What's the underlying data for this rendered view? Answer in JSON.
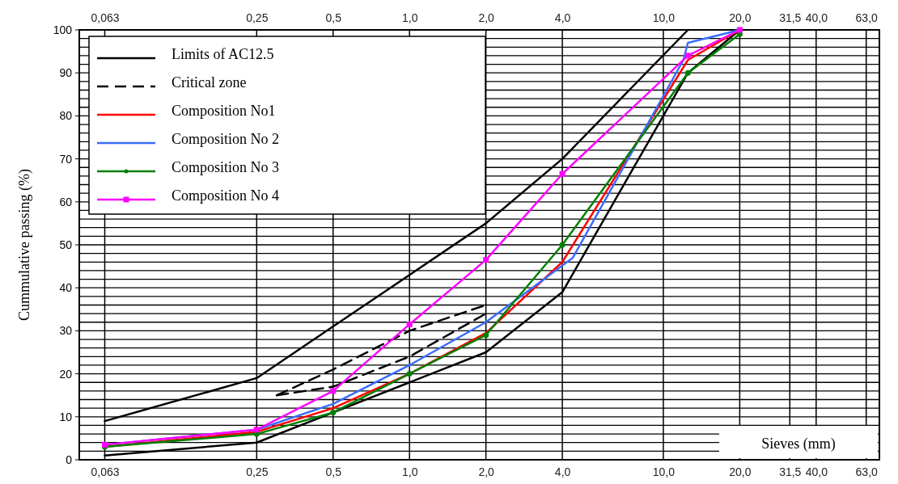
{
  "chart_data": {
    "type": "line",
    "xlabel": "Sieves (mm)",
    "ylabel": "Cummulative passing (%)",
    "log": "x",
    "xlim": [
      0.05,
      71
    ],
    "ylim": [
      0,
      100
    ],
    "xticks": [
      {
        "value": 0.063,
        "label": "0,063"
      },
      {
        "value": 0.25,
        "label": "0,25"
      },
      {
        "value": 0.5,
        "label": "0,5"
      },
      {
        "value": 1,
        "label": "1,0"
      },
      {
        "value": 2,
        "label": "2,0"
      },
      {
        "value": 4,
        "label": "4,0"
      },
      {
        "value": 10,
        "label": "10,0"
      },
      {
        "value": 20,
        "label": "20,0"
      },
      {
        "value": 31.5,
        "label": "31,5"
      },
      {
        "value": 40,
        "label": "40,0"
      },
      {
        "value": 63,
        "label": "63,0"
      }
    ],
    "yticks": [
      0,
      {
        "value": 2,
        "label": null
      },
      {
        "value": 4,
        "label": null
      },
      {
        "value": 6,
        "label": null
      },
      {
        "value": 8,
        "label": null
      },
      10,
      {
        "value": 12,
        "label": null
      },
      {
        "value": 14,
        "label": null
      },
      {
        "value": 16,
        "label": null
      },
      {
        "value": 18,
        "label": null
      },
      20,
      {
        "value": 22,
        "label": null
      },
      {
        "value": 24,
        "label": null
      },
      {
        "value": 26,
        "label": null
      },
      {
        "value": 28,
        "label": null
      },
      30,
      {
        "value": 32,
        "label": null
      },
      {
        "value": 34,
        "label": null
      },
      {
        "value": 36,
        "label": null
      },
      {
        "value": 38,
        "label": null
      },
      40,
      {
        "value": 42,
        "label": null
      },
      {
        "value": 44,
        "label": null
      },
      {
        "value": 46,
        "label": null
      },
      {
        "value": 48,
        "label": null
      },
      50,
      {
        "value": 52,
        "label": null
      },
      {
        "value": 54,
        "label": null
      },
      {
        "value": 56,
        "label": null
      },
      {
        "value": 58,
        "label": null
      },
      60,
      {
        "value": 62,
        "label": null
      },
      {
        "value": 64,
        "label": null
      },
      {
        "value": 66,
        "label": null
      },
      {
        "value": 68,
        "label": null
      },
      70,
      {
        "value": 72,
        "label": null
      },
      {
        "value": 74,
        "label": null
      },
      {
        "value": 76,
        "label": null
      },
      {
        "value": 78,
        "label": null
      },
      80,
      {
        "value": 82,
        "label": null
      },
      {
        "value": 84,
        "label": null
      },
      {
        "value": 86,
        "label": null
      },
      {
        "value": 88,
        "label": null
      },
      90,
      {
        "value": 92,
        "label": null
      },
      {
        "value": 94,
        "label": null
      },
      {
        "value": 96,
        "label": null
      },
      {
        "value": 98,
        "label": null
      },
      100
    ],
    "grid": true,
    "legend": "top left",
    "series": [
      {
        "name": "Limits of AC12.5",
        "color": "#000000",
        "line_style": "solid",
        "marker": "none",
        "x": [
          0.063,
          0.25,
          0.5,
          2,
          4,
          12.5
        ],
        "values": [
          9,
          19,
          31,
          55,
          70,
          100
        ]
      },
      {
        "color": "#000000",
        "line_style": "solid",
        "marker": "none",
        "x": [
          0.063,
          0.25,
          1,
          2,
          4,
          10,
          12.5,
          20
        ],
        "values": [
          1,
          4,
          18,
          25,
          39,
          80,
          90,
          100
        ]
      },
      {
        "name": "Critical zone",
        "color": "#000000",
        "line_style": "dashed",
        "marker": "none",
        "x": [
          0.3,
          0.5,
          1,
          2
        ],
        "values": [
          15,
          21,
          30,
          36
        ]
      },
      {
        "color": "#000000",
        "line_style": "dashed",
        "marker": "none",
        "x": [
          0.3,
          0.5,
          1,
          2
        ],
        "values": [
          15,
          17,
          24,
          34
        ]
      },
      {
        "name": "Composition No1",
        "color": "#ff0000",
        "line_style": "solid",
        "marker": "none",
        "x": [
          0.063,
          0.25,
          0.5,
          1,
          2,
          4,
          12.5,
          20
        ],
        "values": [
          3,
          6.5,
          12,
          20,
          29.5,
          46,
          93,
          100
        ]
      },
      {
        "name": "Composition No 2",
        "color": "#3b6cff",
        "line_style": "solid",
        "marker": "none",
        "x": [
          0.063,
          0.25,
          0.5,
          1,
          2,
          4.4,
          12,
          12.5,
          20
        ],
        "values": [
          3.5,
          7,
          13,
          22,
          32,
          47,
          93,
          97,
          100
        ]
      },
      {
        "name": "Composition No 3",
        "color": "#008000",
        "line_style": "solid",
        "marker": "circle",
        "x": [
          0.063,
          0.25,
          0.5,
          1,
          2,
          4,
          12.5,
          20
        ],
        "values": [
          3,
          6,
          11,
          20,
          29,
          50,
          90,
          99
        ]
      },
      {
        "name": "Composition No 4",
        "color": "#ff00ff",
        "line_style": "solid",
        "marker": "square",
        "x": [
          0.063,
          0.25,
          0.5,
          1,
          2,
          4,
          12.5,
          20
        ],
        "values": [
          3.5,
          7,
          16,
          31.5,
          46.5,
          66.5,
          94,
          100
        ]
      }
    ]
  }
}
